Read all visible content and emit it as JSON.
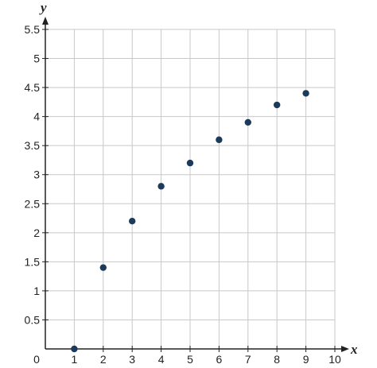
{
  "chart_data": {
    "type": "scatter",
    "title": "",
    "xlabel": "x",
    "ylabel": "y",
    "xlim": [
      0,
      10
    ],
    "ylim": [
      0,
      5.5
    ],
    "grid": true,
    "x_ticks": [
      1,
      2,
      3,
      4,
      5,
      6,
      7,
      8,
      9,
      10
    ],
    "y_ticks": [
      0.5,
      1,
      1.5,
      2,
      2.5,
      3,
      3.5,
      4,
      4.5,
      5,
      5.5
    ],
    "origin_label": "0",
    "points": [
      {
        "x": 1,
        "y": 0
      },
      {
        "x": 2,
        "y": 1.4
      },
      {
        "x": 3,
        "y": 2.2
      },
      {
        "x": 4,
        "y": 2.8
      },
      {
        "x": 5,
        "y": 3.2
      },
      {
        "x": 6,
        "y": 3.6
      },
      {
        "x": 7,
        "y": 3.9
      },
      {
        "x": 8,
        "y": 4.2
      },
      {
        "x": 9,
        "y": 4.4
      }
    ],
    "colors": {
      "point": "#1b3a5c",
      "grid": "#c8c8c8",
      "axis": "#222222"
    }
  }
}
